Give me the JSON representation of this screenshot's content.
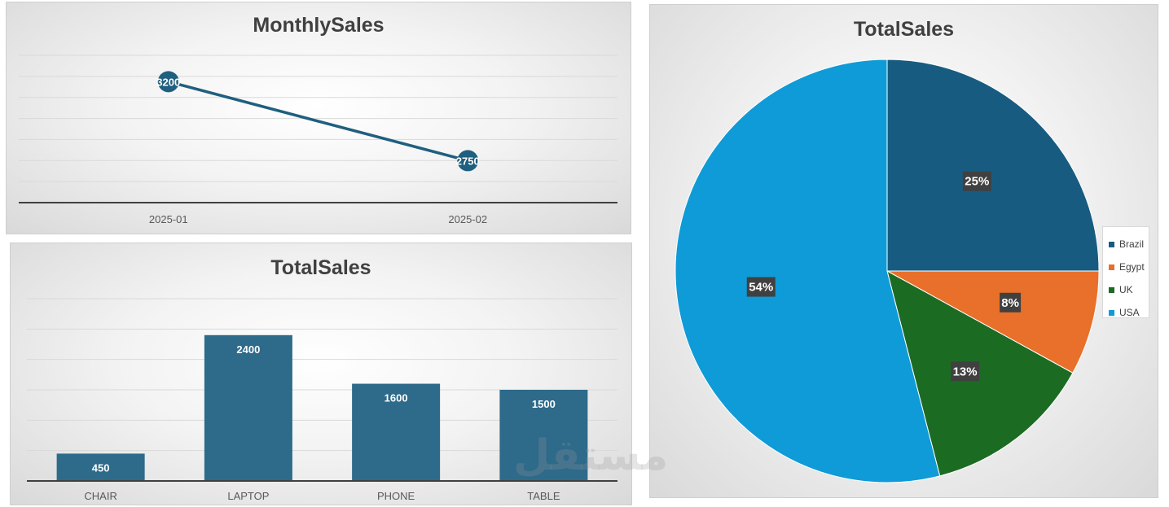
{
  "chart_data": [
    {
      "type": "line",
      "title": "MonthlySales",
      "categories": [
        "2025-01",
        "2025-02"
      ],
      "values": [
        3200,
        2750
      ],
      "data_labels": [
        "3200",
        "2750"
      ],
      "color": "#1f5f7f",
      "grid": true
    },
    {
      "type": "bar",
      "title": "TotalSales",
      "categories": [
        "CHAIR",
        "LAPTOP",
        "PHONE",
        "TABLE"
      ],
      "values": [
        450,
        2400,
        1600,
        1500
      ],
      "data_labels": [
        "450",
        "2400",
        "1600",
        "1500"
      ],
      "ylim": [
        0,
        3000
      ],
      "color": "#2e6a8a",
      "grid": true
    },
    {
      "type": "pie",
      "title": "TotalSales",
      "categories": [
        "Brazil",
        "Egypt",
        "UK",
        "USA"
      ],
      "values": [
        25,
        8,
        13,
        54
      ],
      "data_labels": [
        "25%",
        "8%",
        "13%",
        "54%"
      ],
      "colors": [
        "#175c80",
        "#e8702a",
        "#1c6b23",
        "#0f9bd7"
      ],
      "legend": "right"
    }
  ],
  "watermark": "مستقل"
}
